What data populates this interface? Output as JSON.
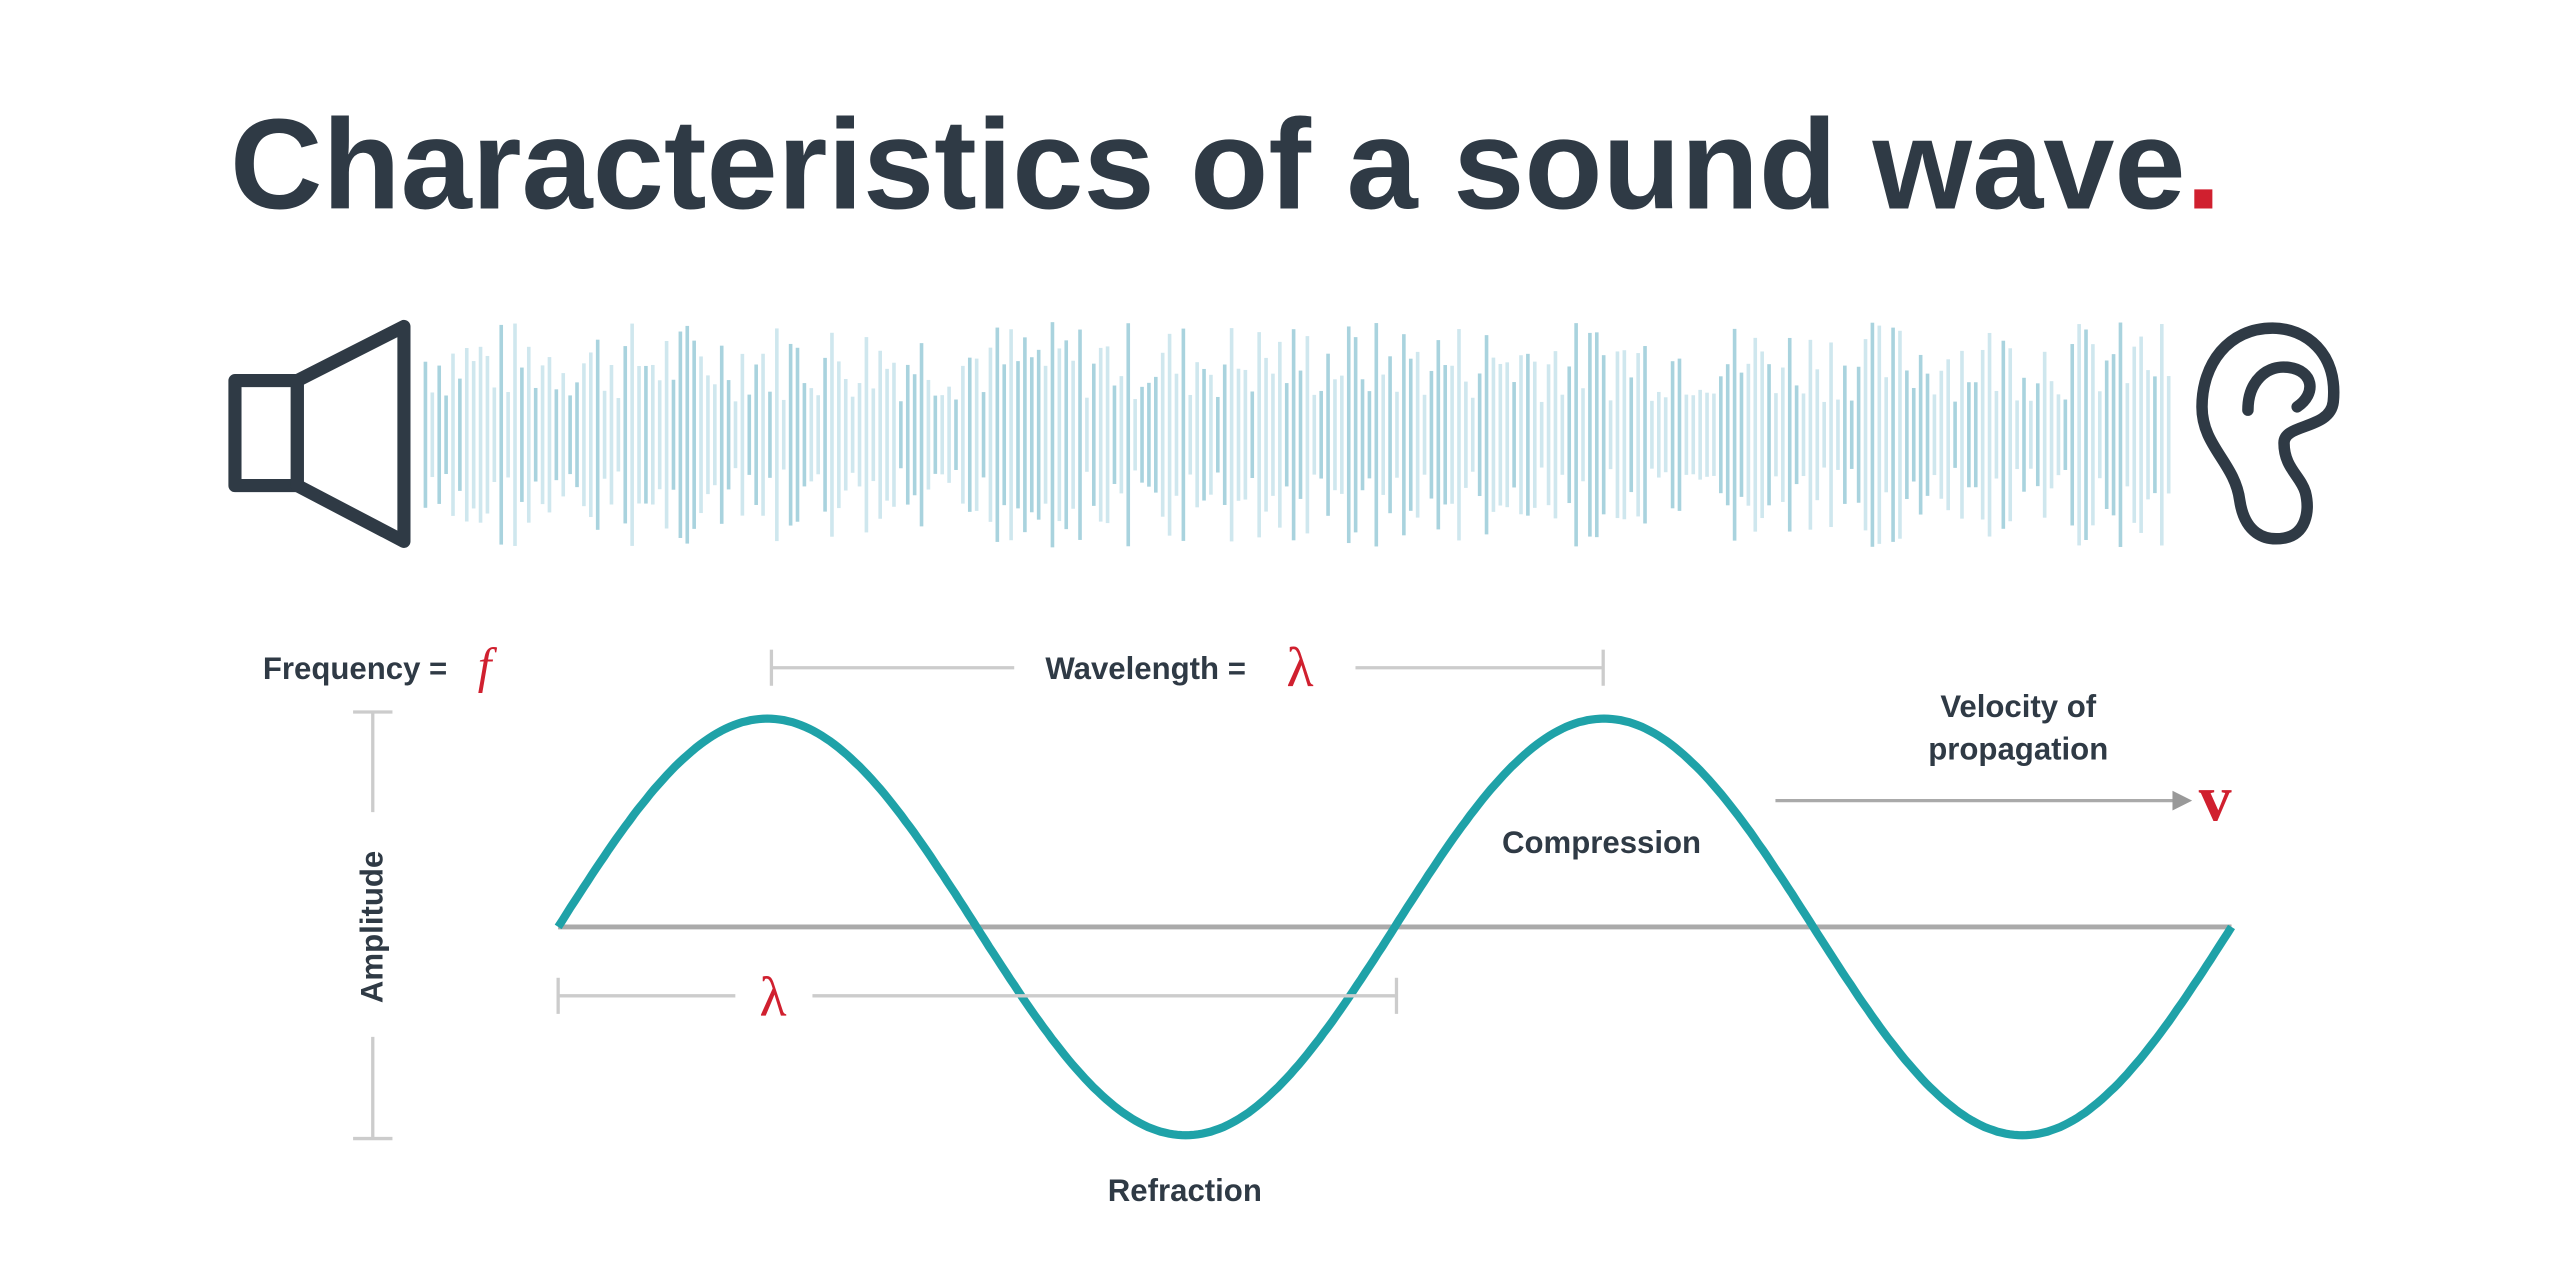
{
  "header": {
    "title": "Characteristics of a sound wave",
    "title_mark": "."
  },
  "labels": {
    "frequency": "Frequency =",
    "frequency_symbol": "f",
    "wavelength": "Wavelength =",
    "wavelength_symbol": "λ",
    "velocity_line1": "Velocity of",
    "velocity_line2": "propagation",
    "velocity_symbol": "v",
    "compression": "Compression",
    "amplitude": "Amplitude",
    "lambda_lower": "λ",
    "refraction": "Refraction"
  }
}
